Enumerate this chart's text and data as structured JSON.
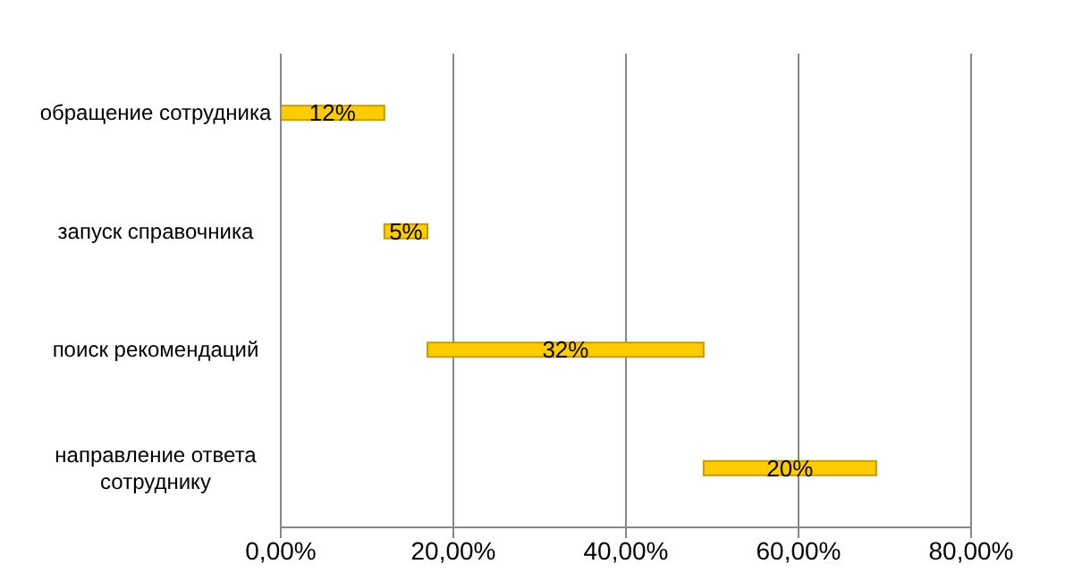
{
  "chart_data": {
    "type": "bar",
    "orientation": "horizontal",
    "categories": [
      "обращение сотрудника",
      "запуск справочника",
      "поиск рекомендаций",
      "направление ответа сотруднику"
    ],
    "values": [
      12,
      5,
      32,
      20
    ],
    "base": [
      0,
      12,
      17,
      49
    ],
    "value_labels": [
      "12%",
      "5%",
      "32%",
      "20%"
    ],
    "color": "#ffcc00",
    "xlim": [
      0,
      80
    ],
    "xticks": [
      {
        "value": 0,
        "label": "0,00%"
      },
      {
        "value": 20,
        "label": "20,00%"
      },
      {
        "value": 40,
        "label": "40,00%"
      },
      {
        "value": 60,
        "label": "60,00%"
      },
      {
        "value": 80,
        "label": "80,00%"
      }
    ],
    "grid": "x"
  }
}
